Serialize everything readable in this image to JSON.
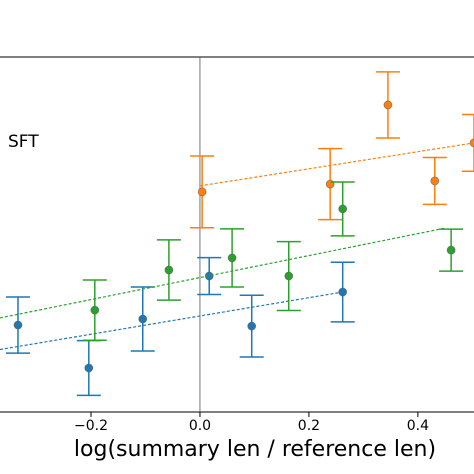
{
  "chart_data": {
    "type": "scatter",
    "xlabel": "log(summary len / reference len)",
    "annotation": "SFT",
    "xlim": [
      -0.367,
      0.503
    ],
    "ylim": [
      0,
      1
    ],
    "xticks": [
      {
        "value": -0.2,
        "label": "−0.2"
      },
      {
        "value": 0,
        "label": "0.0"
      },
      0.2,
      0.4
    ],
    "vline": 0,
    "series": [
      {
        "color": "#1f77b4",
        "x": [
          -0.334,
          -0.204,
          -0.105,
          0.017,
          0.095,
          0.262
        ],
        "values": [
          0.245,
          0.124,
          0.262,
          0.383,
          0.242,
          0.338
        ],
        "errors": [
          0.079,
          0.077,
          0.09,
          0.052,
          0.087,
          0.084
        ],
        "trend": {
          "x": [
            -0.367,
            0.262
          ],
          "y": [
            0.176,
            0.338
          ]
        }
      },
      {
        "color": "#ff7f0e",
        "x": [
          0.004,
          0.239,
          0.345,
          0.431,
          0.503
        ],
        "values": [
          0.62,
          0.642,
          0.865,
          0.651,
          0.758
        ],
        "errors": [
          0.101,
          0.1,
          0.093,
          0.066,
          0.08
        ],
        "trend": {
          "x": [
            0.0,
            0.503
          ],
          "y": [
            0.637,
            0.758
          ]
        }
      },
      {
        "color": "#2ca02c",
        "x": [
          -0.193,
          -0.057,
          0.059,
          0.163,
          0.262,
          0.461
        ],
        "values": [
          0.287,
          0.4,
          0.434,
          0.383,
          0.572,
          0.456
        ],
        "errors": [
          0.085,
          0.085,
          0.082,
          0.097,
          0.076,
          0.059
        ],
        "trend": {
          "x": [
            -0.367,
            0.45
          ],
          "y": [
            0.265,
            0.518
          ]
        }
      }
    ]
  }
}
